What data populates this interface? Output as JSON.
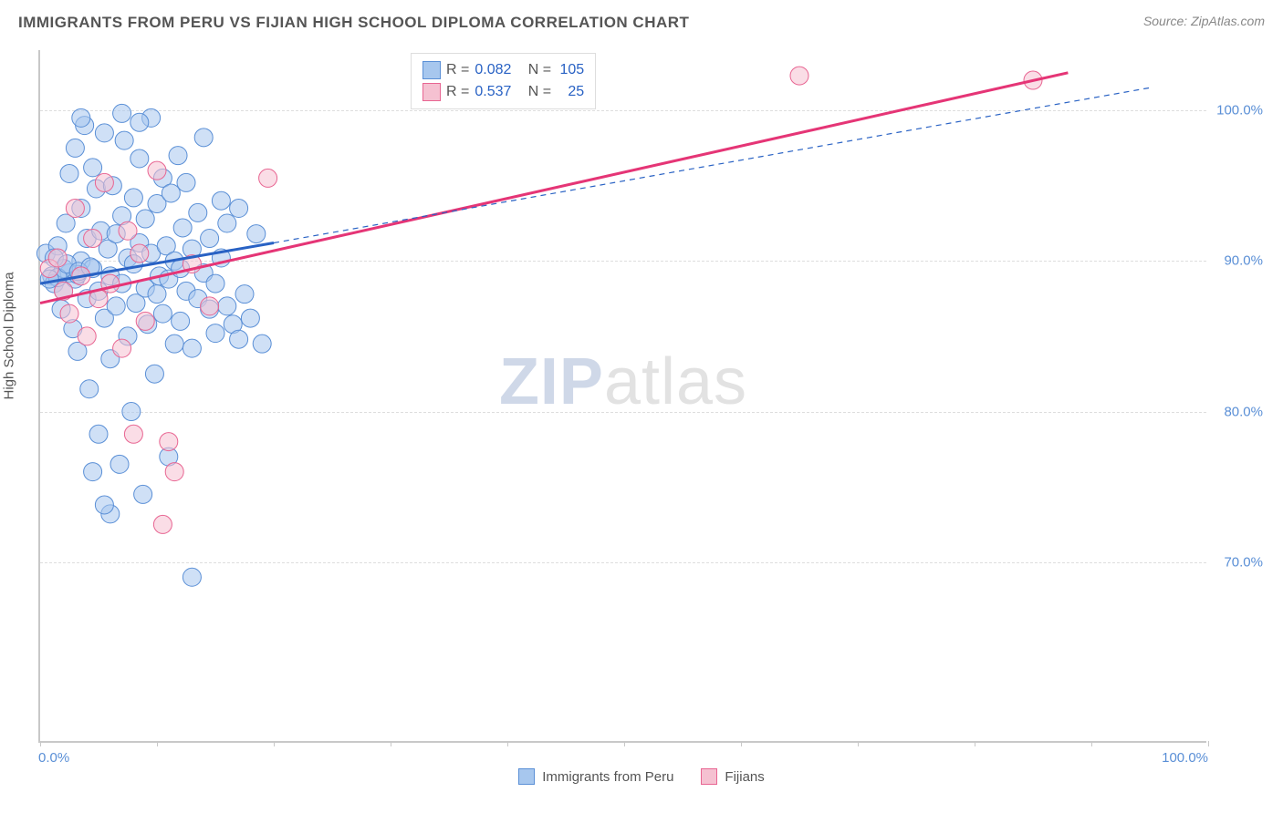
{
  "header": {
    "title": "IMMIGRANTS FROM PERU VS FIJIAN HIGH SCHOOL DIPLOMA CORRELATION CHART",
    "source": "Source: ZipAtlas.com"
  },
  "chart": {
    "type": "scatter",
    "y_axis": {
      "title": "High School Diploma",
      "min": 58,
      "max": 104,
      "ticks": [
        70,
        80,
        90,
        100
      ],
      "tick_labels": [
        "70.0%",
        "80.0%",
        "90.0%",
        "100.0%"
      ],
      "label_color": "#5a8fd6",
      "label_fontsize": 15
    },
    "x_axis": {
      "min": 0,
      "max": 100,
      "tick_positions": [
        0,
        10,
        20,
        30,
        40,
        50,
        60,
        70,
        80,
        90,
        100
      ],
      "label_left": "0.0%",
      "label_right": "100.0%",
      "label_color": "#5a8fd6"
    },
    "grid_color": "#dddddd",
    "axis_color": "#c8c8c8",
    "background_color": "#ffffff",
    "watermark": {
      "text_bold": "ZIP",
      "text_rest": "atlas",
      "color_bold": "#cfd8e8",
      "color_rest": "#e2e2e2",
      "fontsize": 72
    },
    "series": [
      {
        "name": "Immigrants from Peru",
        "color_fill": "#a7c7ee",
        "color_stroke": "#5a8fd6",
        "fill_opacity": 0.55,
        "marker_radius": 10,
        "R": "0.082",
        "N": "105",
        "trend": {
          "solid": [
            [
              0,
              88.5
            ],
            [
              20,
              91.2
            ]
          ],
          "dashed": [
            [
              20,
              91.2
            ],
            [
              95,
              101.5
            ]
          ],
          "color": "#2962c4",
          "width_solid": 3,
          "width_dashed": 1.2
        },
        "points": [
          [
            0.5,
            90.5
          ],
          [
            1.0,
            89.0
          ],
          [
            1.2,
            88.5
          ],
          [
            1.5,
            91.0
          ],
          [
            1.8,
            86.8
          ],
          [
            2.0,
            88.0
          ],
          [
            2.2,
            92.5
          ],
          [
            2.5,
            95.8
          ],
          [
            2.5,
            89.2
          ],
          [
            2.8,
            85.5
          ],
          [
            3.0,
            97.5
          ],
          [
            3.0,
            88.8
          ],
          [
            3.2,
            84.0
          ],
          [
            3.5,
            93.5
          ],
          [
            3.5,
            90.0
          ],
          [
            3.8,
            99.0
          ],
          [
            4.0,
            87.5
          ],
          [
            4.0,
            91.5
          ],
          [
            4.2,
            81.5
          ],
          [
            4.5,
            96.2
          ],
          [
            4.5,
            89.5
          ],
          [
            4.8,
            94.8
          ],
          [
            5.0,
            78.5
          ],
          [
            5.0,
            88.0
          ],
          [
            5.2,
            92.0
          ],
          [
            5.5,
            86.2
          ],
          [
            5.5,
            98.5
          ],
          [
            5.8,
            90.8
          ],
          [
            6.0,
            83.5
          ],
          [
            6.0,
            89.0
          ],
          [
            6.2,
            95.0
          ],
          [
            6.5,
            87.0
          ],
          [
            6.5,
            91.8
          ],
          [
            6.8,
            76.5
          ],
          [
            7.0,
            93.0
          ],
          [
            7.0,
            88.5
          ],
          [
            7.2,
            98.0
          ],
          [
            7.5,
            85.0
          ],
          [
            7.5,
            90.2
          ],
          [
            7.8,
            80.0
          ],
          [
            8.0,
            94.2
          ],
          [
            8.0,
            89.8
          ],
          [
            8.2,
            87.2
          ],
          [
            8.5,
            96.8
          ],
          [
            8.5,
            91.2
          ],
          [
            8.8,
            74.5
          ],
          [
            9.0,
            88.2
          ],
          [
            9.0,
            92.8
          ],
          [
            9.2,
            85.8
          ],
          [
            9.5,
            99.5
          ],
          [
            9.5,
            90.5
          ],
          [
            9.8,
            82.5
          ],
          [
            10.0,
            87.8
          ],
          [
            10.0,
            93.8
          ],
          [
            10.2,
            89.0
          ],
          [
            10.5,
            95.5
          ],
          [
            10.5,
            86.5
          ],
          [
            10.8,
            91.0
          ],
          [
            11.0,
            77.0
          ],
          [
            11.0,
            88.8
          ],
          [
            11.2,
            94.5
          ],
          [
            11.5,
            90.0
          ],
          [
            11.5,
            84.5
          ],
          [
            11.8,
            97.0
          ],
          [
            12.0,
            89.5
          ],
          [
            12.0,
            86.0
          ],
          [
            12.2,
            92.2
          ],
          [
            12.5,
            88.0
          ],
          [
            12.5,
            95.2
          ],
          [
            13.0,
            90.8
          ],
          [
            13.0,
            84.2
          ],
          [
            13.5,
            87.5
          ],
          [
            13.5,
            93.2
          ],
          [
            14.0,
            89.2
          ],
          [
            14.0,
            98.2
          ],
          [
            14.5,
            86.8
          ],
          [
            14.5,
            91.5
          ],
          [
            15.0,
            85.2
          ],
          [
            15.0,
            88.5
          ],
          [
            15.5,
            94.0
          ],
          [
            15.5,
            90.2
          ],
          [
            16.0,
            87.0
          ],
          [
            16.0,
            92.5
          ],
          [
            16.5,
            85.8
          ],
          [
            17.0,
            84.8
          ],
          [
            17.0,
            93.5
          ],
          [
            17.5,
            87.8
          ],
          [
            18.0,
            86.2
          ],
          [
            18.5,
            91.8
          ],
          [
            19.0,
            84.5
          ],
          [
            13.0,
            69.0
          ],
          [
            6.0,
            73.2
          ],
          [
            5.5,
            73.8
          ],
          [
            4.5,
            76.0
          ],
          [
            7.0,
            99.8
          ],
          [
            8.5,
            99.2
          ],
          [
            3.5,
            99.5
          ],
          [
            3.2,
            89.1
          ],
          [
            2.0,
            89.5
          ],
          [
            1.5,
            88.9
          ],
          [
            0.8,
            88.8
          ],
          [
            1.2,
            90.2
          ],
          [
            2.3,
            89.8
          ],
          [
            3.3,
            89.3
          ],
          [
            4.3,
            89.6
          ]
        ]
      },
      {
        "name": "Fijians",
        "color_fill": "#f5c1d1",
        "color_stroke": "#e86592",
        "fill_opacity": 0.55,
        "marker_radius": 10,
        "R": "0.537",
        "N": "25",
        "trend": {
          "solid": [
            [
              0,
              87.2
            ],
            [
              88,
              102.5
            ]
          ],
          "color": "#e53576",
          "width_solid": 3
        },
        "points": [
          [
            0.8,
            89.5
          ],
          [
            1.5,
            90.2
          ],
          [
            2.0,
            88.0
          ],
          [
            2.5,
            86.5
          ],
          [
            3.0,
            93.5
          ],
          [
            3.5,
            89.0
          ],
          [
            4.0,
            85.0
          ],
          [
            4.5,
            91.5
          ],
          [
            5.0,
            87.5
          ],
          [
            5.5,
            95.2
          ],
          [
            6.0,
            88.5
          ],
          [
            7.0,
            84.2
          ],
          [
            7.5,
            92.0
          ],
          [
            8.0,
            78.5
          ],
          [
            8.5,
            90.5
          ],
          [
            9.0,
            86.0
          ],
          [
            10.0,
            96.0
          ],
          [
            11.0,
            78.0
          ],
          [
            11.5,
            76.0
          ],
          [
            13.0,
            89.8
          ],
          [
            14.5,
            87.0
          ],
          [
            19.5,
            95.5
          ],
          [
            65.0,
            102.3
          ],
          [
            85.0,
            102.0
          ],
          [
            10.5,
            72.5
          ]
        ]
      }
    ]
  },
  "legend_bottom": [
    {
      "label": "Immigrants from Peru",
      "fill": "#a7c7ee",
      "stroke": "#5a8fd6"
    },
    {
      "label": "Fijians",
      "fill": "#f5c1d1",
      "stroke": "#e86592"
    }
  ]
}
